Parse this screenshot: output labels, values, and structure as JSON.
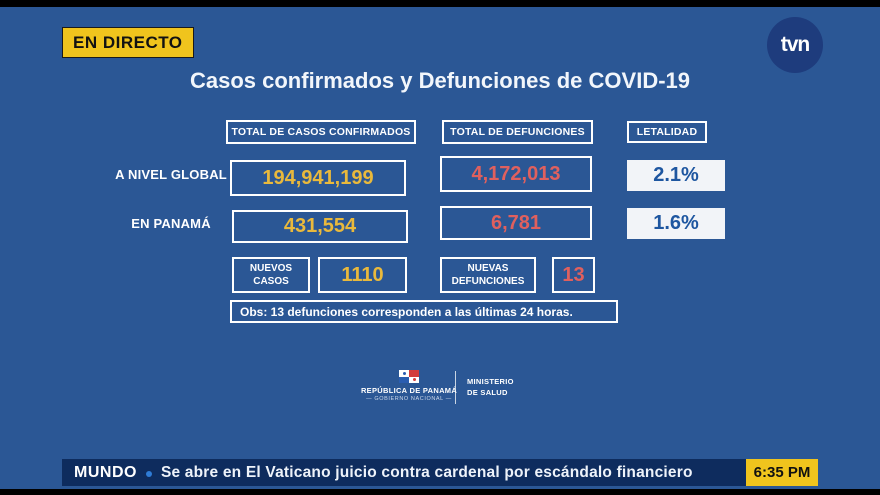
{
  "colors": {
    "background_blue": "#2b5795",
    "ticker_navy": "#0e2c5e",
    "accent_yellow": "#f0c41d",
    "value_yellow": "#e9b93c",
    "value_red": "#e0605e",
    "percent_blue": "#1e56a0",
    "tvn_circle_blue": "#1e3c7d"
  },
  "live_badge": "EN DIRECTO",
  "channel": {
    "logo_text": "tvn"
  },
  "title": "Casos confirmados y Defunciones de COVID-19",
  "table": {
    "headers": {
      "confirmed": "TOTAL DE CASOS CONFIRMADOS",
      "deaths": "TOTAL DE DEFUNCIONES",
      "lethality": "LETALIDAD"
    },
    "rows": [
      {
        "label": "A NIVEL GLOBAL",
        "confirmed": "194,941,199",
        "deaths": "4,172,013",
        "lethality": "2.1%"
      },
      {
        "label": "EN PANAMÁ",
        "confirmed": "431,554",
        "deaths": "6,781",
        "lethality": "1.6%"
      }
    ],
    "new_cases": {
      "label_line1": "NUEVOS",
      "label_line2": "CASOS",
      "value": "1110"
    },
    "new_deaths": {
      "label_line1": "NUEVAS",
      "label_line2": "DEFUNCIONES",
      "value": "13"
    },
    "note": "Obs:  13 defunciones corresponden a las últimas 24 horas."
  },
  "government": {
    "republic": "REPÚBLICA DE PANAMÁ",
    "subtitle": "—  GOBIERNO NACIONAL  —",
    "ministry_line1": "MINISTERIO",
    "ministry_line2": "DE SALUD"
  },
  "ticker": {
    "category": "MUNDO",
    "headline": "Se abre en El Vaticano juicio contra cardenal por escándalo financiero",
    "time": "6:35 PM"
  },
  "chart_data": {
    "type": "table",
    "title": "Casos confirmados y Defunciones de COVID-19",
    "columns": [
      "",
      "TOTAL DE CASOS CONFIRMADOS",
      "TOTAL DE DEFUNCIONES",
      "LETALIDAD"
    ],
    "rows": [
      [
        "A NIVEL GLOBAL",
        194941199,
        4172013,
        "2.1%"
      ],
      [
        "EN PANAMÁ",
        431554,
        6781,
        "1.6%"
      ]
    ],
    "nuevos_casos": 1110,
    "nuevas_defunciones": 13,
    "note": "Obs: 13 defunciones corresponden a las últimas 24 horas."
  }
}
